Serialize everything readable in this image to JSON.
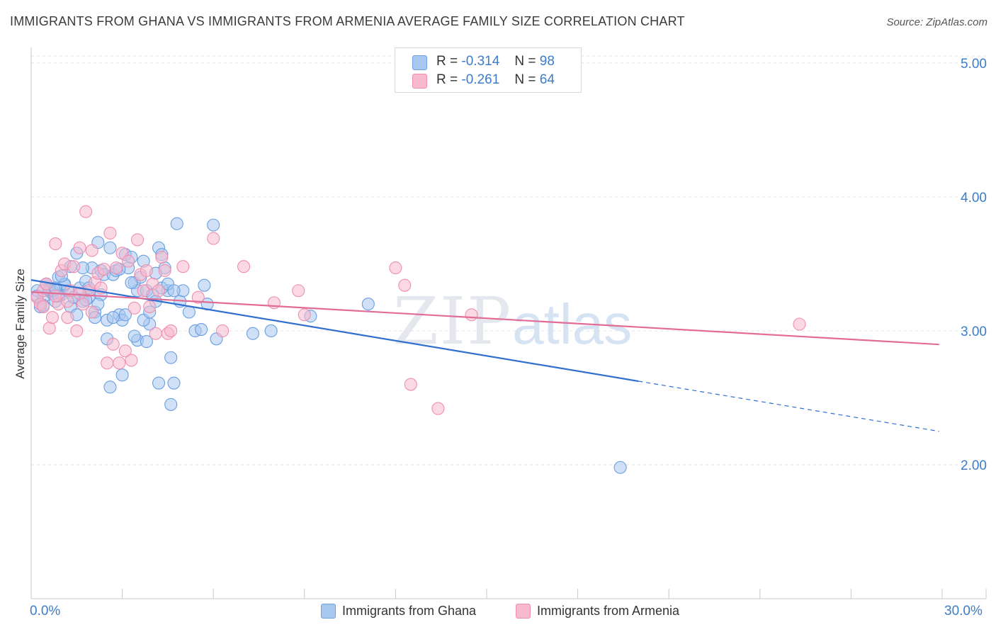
{
  "title": "IMMIGRANTS FROM GHANA VS IMMIGRANTS FROM ARMENIA AVERAGE FAMILY SIZE CORRELATION CHART",
  "source": "Source: ZipAtlas.com",
  "watermark": {
    "zip": "ZIP",
    "atlas": "atlas"
  },
  "legend": {
    "r_label": "R =",
    "n_label": "N =",
    "rows": [
      {
        "r": "-0.314",
        "n": "98",
        "color": "#a9c8f0"
      },
      {
        "r": "-0.261",
        "n": "64",
        "color": "#f6b9cd"
      }
    ]
  },
  "chart_data": {
    "type": "scatter",
    "title": "IMMIGRANTS FROM GHANA VS IMMIGRANTS FROM ARMENIA AVERAGE FAMILY SIZE CORRELATION CHART",
    "xlabel": "",
    "ylabel": "Average Family Size",
    "xlim": [
      0,
      30
    ],
    "ylim": [
      1.0,
      5.1
    ],
    "x_tick_labels": [
      "0.0%",
      "30.0%"
    ],
    "y_ticks": [
      2.0,
      3.0,
      4.0,
      5.0
    ],
    "y_tick_labels": [
      "2.00",
      "3.00",
      "4.00",
      "5.00"
    ],
    "grid": true,
    "legend_position": "bottom-center",
    "series": [
      {
        "name": "Immigrants from Ghana",
        "color": "#6a9fe0",
        "fill": "#a9c8f0",
        "line_color": "#2f6fcf",
        "trend": {
          "x_start": 0.0,
          "y_start": 3.38,
          "x_solid_end": 20.0,
          "x_end": 29.9,
          "slope": -0.0378
        },
        "x": [
          0.2,
          0.3,
          0.4,
          0.5,
          0.6,
          0.7,
          0.8,
          0.9,
          1.0,
          1.1,
          1.2,
          1.3,
          1.4,
          1.5,
          1.6,
          1.7,
          1.8,
          1.9,
          2.0,
          2.1,
          2.2,
          2.3,
          2.4,
          2.5,
          2.6,
          2.7,
          2.8,
          2.9,
          3.0,
          3.1,
          3.2,
          3.3,
          3.4,
          3.5,
          3.6,
          3.7,
          3.8,
          3.9,
          4.0,
          4.1,
          4.2,
          4.3,
          4.4,
          4.5,
          4.6,
          4.7,
          4.8,
          4.9,
          5.0,
          5.2,
          5.4,
          5.6,
          5.8,
          6.0,
          0.3,
          0.5,
          0.7,
          0.9,
          1.1,
          1.3,
          1.5,
          1.7,
          1.9,
          2.1,
          2.3,
          2.5,
          2.7,
          2.9,
          3.1,
          3.3,
          3.5,
          3.7,
          3.9,
          4.1,
          4.3,
          4.5,
          4.7,
          0.2,
          0.4,
          0.6,
          0.8,
          1.0,
          1.4,
          1.8,
          2.2,
          2.6,
          3.0,
          3.4,
          3.8,
          4.2,
          4.6,
          5.7,
          6.1,
          7.3,
          7.9,
          9.2,
          11.1,
          19.4
        ],
        "y": [
          3.3,
          3.2,
          3.25,
          3.35,
          3.3,
          3.28,
          3.22,
          3.4,
          3.27,
          3.34,
          3.3,
          3.48,
          3.25,
          3.58,
          3.32,
          3.22,
          3.37,
          3.25,
          3.47,
          3.14,
          3.66,
          3.45,
          3.42,
          3.08,
          3.62,
          3.42,
          3.45,
          3.12,
          3.08,
          3.57,
          3.47,
          3.55,
          3.36,
          3.3,
          3.4,
          3.52,
          3.3,
          3.05,
          3.27,
          3.22,
          3.62,
          3.57,
          3.47,
          3.3,
          2.45,
          2.61,
          3.8,
          3.22,
          3.3,
          3.14,
          3.0,
          3.01,
          3.2,
          3.79,
          3.18,
          3.35,
          3.3,
          3.26,
          3.35,
          3.18,
          3.12,
          3.47,
          3.32,
          3.1,
          3.27,
          2.94,
          3.1,
          3.46,
          3.12,
          3.36,
          2.93,
          3.08,
          3.14,
          3.43,
          3.32,
          3.35,
          3.3,
          3.26,
          3.19,
          3.31,
          3.32,
          3.41,
          3.25,
          3.23,
          3.2,
          2.58,
          2.67,
          2.96,
          2.92,
          2.61,
          2.8,
          3.34,
          2.94,
          2.98,
          3.0,
          3.11,
          3.2,
          1.98
        ]
      },
      {
        "name": "Immigrants from Armenia",
        "color": "#ef8fb0",
        "fill": "#f6b9cd",
        "line_color": "#e26c96",
        "trend": {
          "x_start": 0.0,
          "y_start": 3.29,
          "x_end": 29.9,
          "slope": -0.0131
        },
        "x": [
          0.2,
          0.3,
          0.4,
          0.5,
          0.6,
          0.7,
          0.8,
          0.9,
          1.0,
          1.1,
          1.2,
          1.3,
          1.4,
          1.5,
          1.6,
          1.7,
          1.8,
          1.9,
          2.0,
          2.1,
          2.2,
          2.3,
          2.4,
          2.5,
          2.6,
          2.7,
          2.8,
          2.9,
          3.0,
          3.1,
          3.2,
          3.3,
          3.4,
          3.5,
          3.6,
          3.7,
          3.8,
          3.9,
          4.0,
          4.1,
          4.2,
          4.3,
          4.4,
          4.5,
          4.6,
          5.0,
          5.5,
          6.0,
          6.3,
          7.0,
          8.0,
          8.8,
          9.0,
          12.0,
          12.3,
          12.5,
          13.4,
          14.5,
          25.3,
          0.4,
          0.8,
          1.2,
          1.6,
          2.0
        ],
        "y": [
          3.25,
          3.2,
          3.3,
          3.35,
          3.02,
          3.1,
          3.65,
          3.2,
          3.45,
          3.5,
          3.1,
          3.3,
          3.48,
          3.0,
          3.62,
          3.2,
          3.89,
          3.3,
          3.6,
          3.36,
          3.43,
          3.32,
          3.46,
          2.76,
          3.73,
          2.9,
          3.47,
          2.76,
          3.58,
          2.85,
          3.52,
          2.78,
          3.17,
          3.68,
          3.42,
          3.3,
          3.45,
          3.18,
          3.35,
          2.98,
          3.3,
          3.55,
          3.45,
          2.98,
          3.0,
          3.48,
          3.25,
          3.69,
          3.0,
          3.48,
          3.21,
          3.3,
          3.12,
          3.47,
          3.34,
          2.6,
          2.42,
          3.12,
          3.05,
          3.18,
          3.26,
          3.22,
          3.28,
          3.14
        ]
      }
    ]
  }
}
